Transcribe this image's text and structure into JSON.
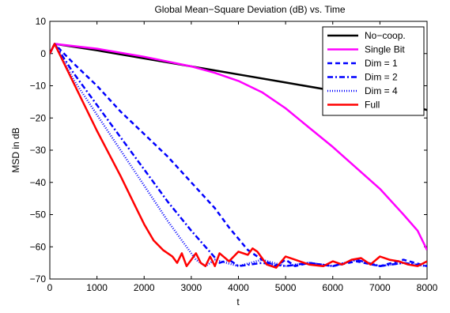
{
  "chart_data": {
    "type": "line",
    "title": "Global Mean−Square Deviation (dB) vs. Time",
    "xlabel": "t",
    "ylabel": "MSD in dB",
    "xlim": [
      0,
      8000
    ],
    "ylim": [
      -70,
      10
    ],
    "grid": false,
    "legend_position": "top-right",
    "x_ticks": [
      0,
      1000,
      2000,
      3000,
      4000,
      5000,
      6000,
      7000,
      8000
    ],
    "x_tick_labels": [
      "0",
      "1000",
      "2000",
      "3000",
      "4000",
      "5000",
      "6000",
      "7000",
      "8000"
    ],
    "y_ticks": [
      10,
      0,
      -10,
      -20,
      -30,
      -40,
      -50,
      -60,
      -70
    ],
    "y_tick_labels": [
      "10",
      "0",
      "−10",
      "−20",
      "−30",
      "−40",
      "−50",
      "−60",
      "−70"
    ],
    "series": [
      {
        "name": "No−coop.",
        "color": "#000000",
        "dash": "solid",
        "points": [
          [
            0,
            0
          ],
          [
            100,
            3
          ],
          [
            1000,
            1
          ],
          [
            2000,
            -1.5
          ],
          [
            3000,
            -4
          ],
          [
            4000,
            -6.5
          ],
          [
            5000,
            -9
          ],
          [
            6000,
            -11.5
          ],
          [
            7000,
            -14
          ],
          [
            8000,
            -17.5
          ]
        ]
      },
      {
        "name": "Single Bit",
        "color": "#ff00ff",
        "dash": "solid",
        "points": [
          [
            0,
            0
          ],
          [
            100,
            3
          ],
          [
            1000,
            1.5
          ],
          [
            2000,
            -1
          ],
          [
            3000,
            -4
          ],
          [
            3500,
            -6
          ],
          [
            4000,
            -8.5
          ],
          [
            4500,
            -12
          ],
          [
            5000,
            -17
          ],
          [
            5500,
            -23
          ],
          [
            6000,
            -29
          ],
          [
            6500,
            -35.5
          ],
          [
            7000,
            -42
          ],
          [
            7500,
            -50
          ],
          [
            7800,
            -55
          ],
          [
            8000,
            -61
          ]
        ]
      },
      {
        "name": "Dim = 1",
        "color": "#0000ff",
        "dash": "dashed",
        "points": [
          [
            0,
            0
          ],
          [
            100,
            3
          ],
          [
            500,
            -3
          ],
          [
            1000,
            -10
          ],
          [
            1500,
            -18
          ],
          [
            2000,
            -25
          ],
          [
            2500,
            -32
          ],
          [
            3000,
            -40
          ],
          [
            3500,
            -48
          ],
          [
            3800,
            -54
          ],
          [
            4200,
            -61
          ],
          [
            4500,
            -64
          ],
          [
            4800,
            -66
          ],
          [
            5000,
            -64
          ],
          [
            5200,
            -66
          ],
          [
            5500,
            -65
          ],
          [
            6000,
            -66
          ],
          [
            6500,
            -64.5
          ],
          [
            7000,
            -66
          ],
          [
            7500,
            -64
          ],
          [
            8000,
            -66
          ]
        ]
      },
      {
        "name": "Dim = 2",
        "color": "#0000ff",
        "dash": "dashdot",
        "points": [
          [
            0,
            0
          ],
          [
            100,
            3
          ],
          [
            500,
            -6
          ],
          [
            1000,
            -16
          ],
          [
            1500,
            -26
          ],
          [
            2000,
            -36
          ],
          [
            2500,
            -46
          ],
          [
            3000,
            -55
          ],
          [
            3300,
            -60
          ],
          [
            3600,
            -65
          ],
          [
            3800,
            -64
          ],
          [
            4000,
            -66
          ],
          [
            4500,
            -65
          ],
          [
            5000,
            -66
          ],
          [
            5500,
            -65
          ],
          [
            6000,
            -66
          ],
          [
            6500,
            -64
          ],
          [
            7000,
            -66
          ],
          [
            7500,
            -65
          ],
          [
            8000,
            -66
          ]
        ]
      },
      {
        "name": "Dim = 4",
        "color": "#0000ff",
        "dash": "dotted",
        "points": [
          [
            0,
            0
          ],
          [
            100,
            3
          ],
          [
            500,
            -8
          ],
          [
            1000,
            -19
          ],
          [
            1500,
            -30
          ],
          [
            2000,
            -41
          ],
          [
            2500,
            -52
          ],
          [
            2800,
            -58
          ],
          [
            3100,
            -64
          ],
          [
            3300,
            -66
          ],
          [
            3500,
            -64
          ],
          [
            4000,
            -66
          ],
          [
            4500,
            -64
          ],
          [
            5000,
            -66
          ],
          [
            5500,
            -65
          ],
          [
            6000,
            -66
          ],
          [
            6500,
            -64
          ],
          [
            7000,
            -66
          ],
          [
            7500,
            -65
          ],
          [
            8000,
            -66
          ]
        ]
      },
      {
        "name": "Full",
        "color": "#ff0000",
        "dash": "solid",
        "points": [
          [
            0,
            0
          ],
          [
            100,
            3
          ],
          [
            300,
            -3
          ],
          [
            600,
            -12
          ],
          [
            1000,
            -24
          ],
          [
            1500,
            -38
          ],
          [
            1800,
            -47
          ],
          [
            2000,
            -53
          ],
          [
            2200,
            -58
          ],
          [
            2400,
            -61
          ],
          [
            2600,
            -63
          ],
          [
            2700,
            -65
          ],
          [
            2800,
            -62
          ],
          [
            2900,
            -66
          ],
          [
            3000,
            -64
          ],
          [
            3100,
            -62
          ],
          [
            3200,
            -65
          ],
          [
            3300,
            -66
          ],
          [
            3400,
            -63
          ],
          [
            3500,
            -66
          ],
          [
            3600,
            -62
          ],
          [
            3800,
            -64.5
          ],
          [
            4000,
            -61.5
          ],
          [
            4200,
            -62.5
          ],
          [
            4300,
            -60.5
          ],
          [
            4400,
            -61.5
          ],
          [
            4600,
            -65.5
          ],
          [
            4800,
            -66.5
          ],
          [
            5000,
            -63
          ],
          [
            5200,
            -64
          ],
          [
            5500,
            -65.5
          ],
          [
            5800,
            -66
          ],
          [
            6000,
            -64.5
          ],
          [
            6200,
            -65.5
          ],
          [
            6400,
            -64
          ],
          [
            6600,
            -63.5
          ],
          [
            6800,
            -65.5
          ],
          [
            7000,
            -63
          ],
          [
            7200,
            -64
          ],
          [
            7400,
            -64.5
          ],
          [
            7600,
            -65.5
          ],
          [
            7800,
            -66
          ],
          [
            8000,
            -64.5
          ]
        ]
      }
    ]
  }
}
